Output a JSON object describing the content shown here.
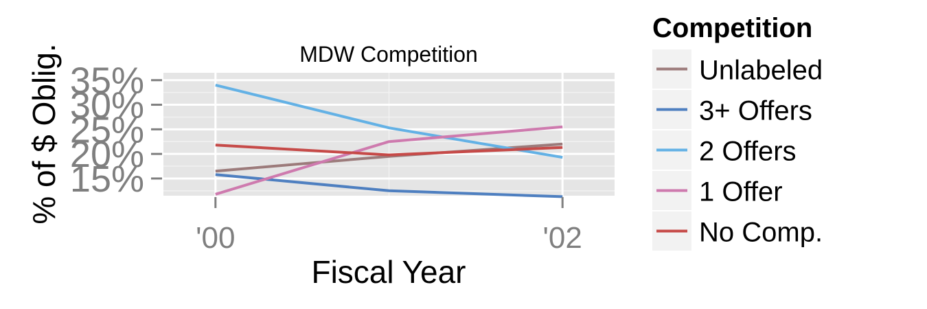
{
  "chart_data": {
    "type": "line",
    "title": "MDW Competition",
    "xlabel": "Fiscal Year",
    "ylabel": "% of $ Oblig.",
    "x": [
      2000,
      2001,
      2002
    ],
    "xlim": [
      1999.7,
      2002.3
    ],
    "ylim": [
      11.5,
      36.5
    ],
    "x_ticks": [
      {
        "value": 2000,
        "label": "'00"
      },
      {
        "value": 2002,
        "label": "'02"
      }
    ],
    "y_ticks": [
      {
        "value": 15,
        "label": "15%"
      },
      {
        "value": 20,
        "label": "20%"
      },
      {
        "value": 25,
        "label": "25%"
      },
      {
        "value": 30,
        "label": "30%"
      },
      {
        "value": 35,
        "label": "35%"
      }
    ],
    "grid": true,
    "legend": {
      "title": "Competition",
      "position": "right"
    },
    "series": [
      {
        "name": "Unlabeled",
        "color": "#9c7b7b",
        "values": [
          16.5,
          19.5,
          22.0
        ]
      },
      {
        "name": "3+ Offers",
        "color": "#4e7fc0",
        "values": [
          15.8,
          12.5,
          11.3
        ]
      },
      {
        "name": "2 Offers",
        "color": "#63b1e5",
        "values": [
          34.0,
          25.3,
          19.3
        ]
      },
      {
        "name": "1 Offer",
        "color": "#ce7aae",
        "values": [
          11.8,
          22.5,
          25.5
        ]
      },
      {
        "name": "No Comp.",
        "color": "#c64a48",
        "values": [
          21.8,
          19.8,
          21.3
        ]
      }
    ]
  }
}
